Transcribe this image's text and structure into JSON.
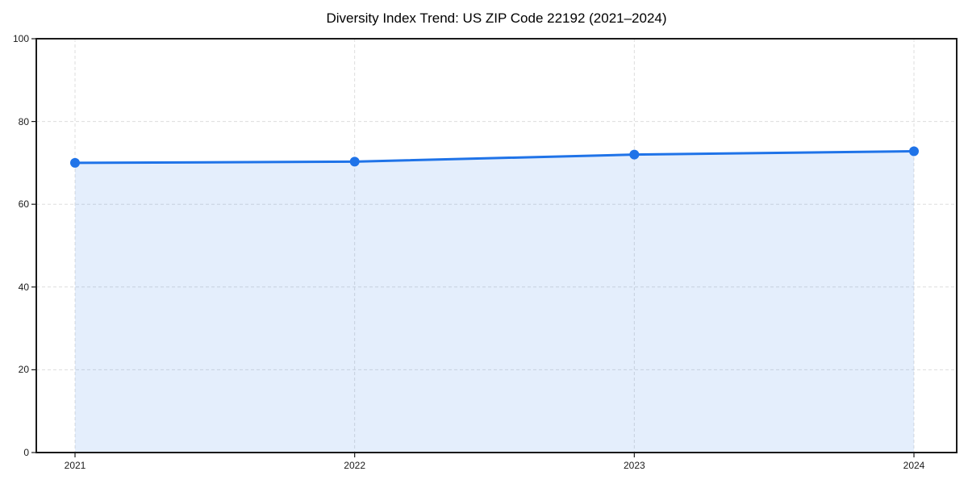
{
  "chart_data": {
    "type": "area",
    "title": "Diversity Index Trend: US ZIP Code 22192 (2021–2024)",
    "x": [
      "2021",
      "2022",
      "2023",
      "2024"
    ],
    "series": [
      {
        "name": "Diversity Index",
        "values": [
          70.0,
          70.3,
          72.0,
          72.8
        ]
      }
    ],
    "xlabel": "",
    "ylabel": "",
    "ylim": [
      0,
      100
    ],
    "yticks": [
      0,
      20,
      40,
      60,
      80,
      100
    ],
    "grid": "dashed, both axes",
    "legend_position": "none",
    "marker": "circle",
    "frame": "full box",
    "colors": {
      "line": "#1f73e8",
      "fill": "rgba(31,115,232,0.12)",
      "gridline": "#dddddd",
      "spine": "#1a1a1a",
      "tick_label": "#1a1a1a",
      "background": "#ffffff"
    }
  }
}
